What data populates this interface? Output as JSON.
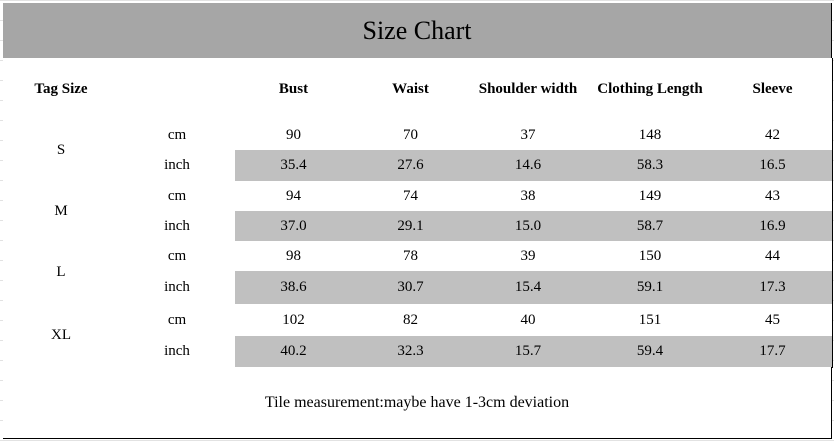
{
  "header": {
    "title": "Size Chart"
  },
  "table": {
    "columns": [
      "Tag Size",
      "Bust",
      "Waist",
      "Shoulder width",
      "Clothing Length",
      "Sleeve"
    ],
    "sizes": [
      {
        "size": "S",
        "rows": [
          [
            "cm",
            "90",
            "70",
            "37",
            "148",
            "42"
          ],
          [
            "inch",
            "35.4",
            "27.6",
            "14.6",
            "58.3",
            "16.5"
          ]
        ]
      },
      {
        "size": "M",
        "rows": [
          [
            "cm",
            "94",
            "74",
            "38",
            "149",
            "43"
          ],
          [
            "inch",
            "37.0",
            "29.1",
            "15.0",
            "58.7",
            "16.9"
          ]
        ]
      },
      {
        "size": "L",
        "rows": [
          [
            "cm",
            "98",
            "78",
            "39",
            "150",
            "44"
          ],
          [
            "inch",
            "38.6",
            "30.7",
            "15.4",
            "59.1",
            "17.3"
          ]
        ]
      },
      {
        "size": "XL",
        "rows": [
          [
            "cm",
            "102",
            "82",
            "40",
            "151",
            "45"
          ],
          [
            "inch",
            "40.2",
            "32.3",
            "15.7",
            "59.4",
            "17.7"
          ]
        ]
      }
    ]
  },
  "footer": {
    "note": "Tile measurement:maybe have 1-3cm deviation"
  }
}
